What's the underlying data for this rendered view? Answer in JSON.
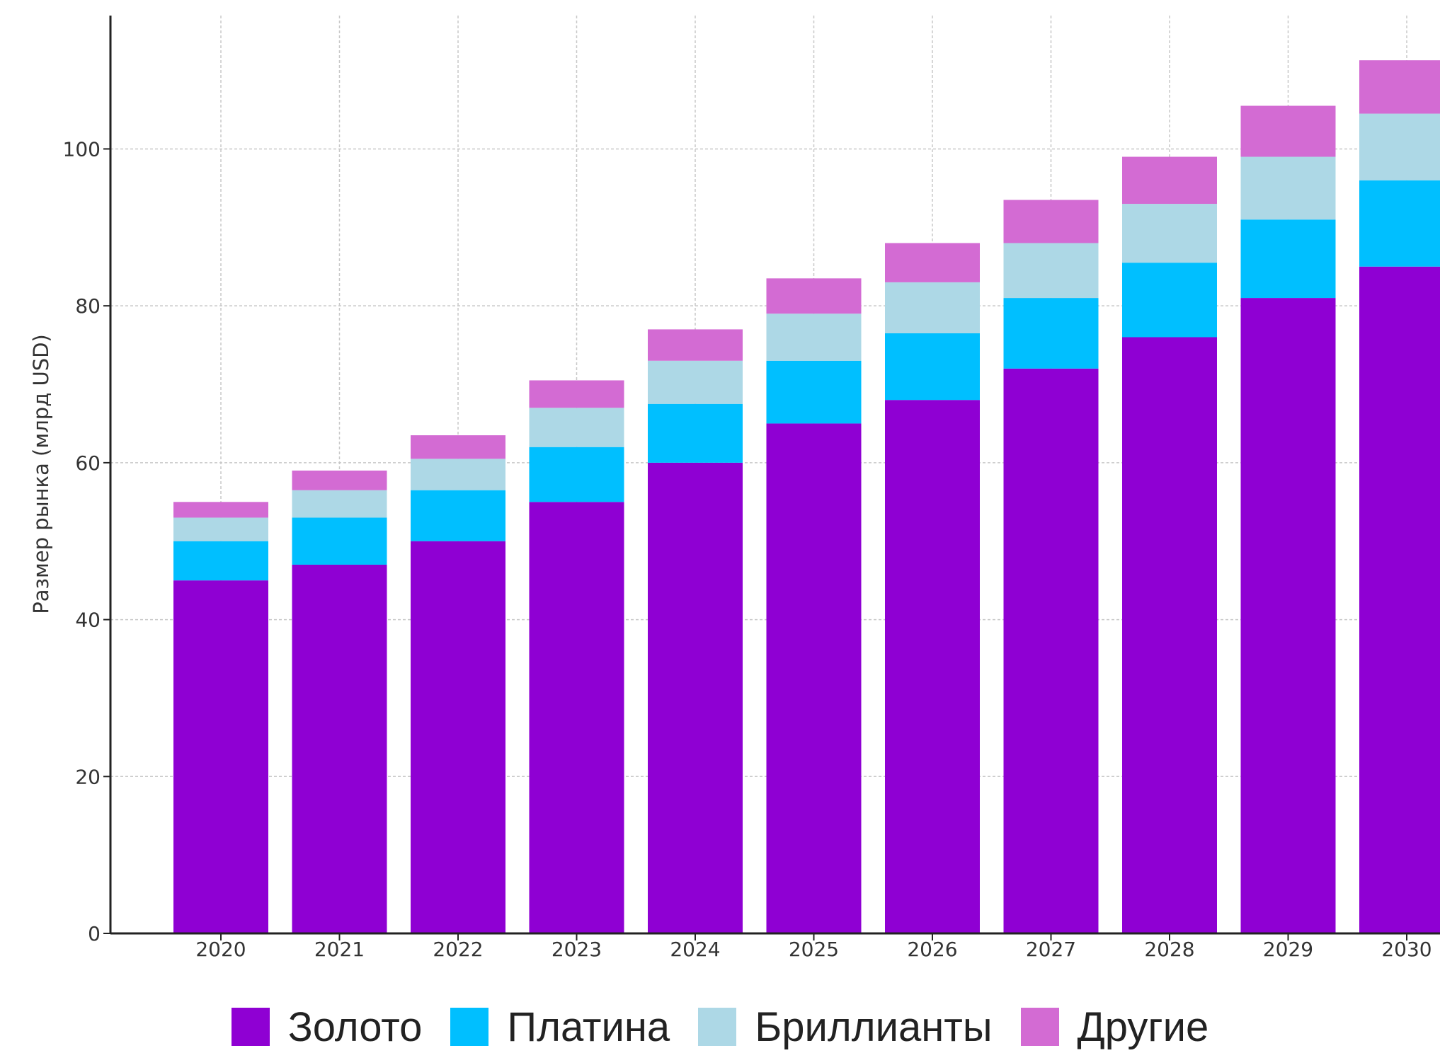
{
  "chart_data": {
    "type": "bar",
    "stacked": true,
    "categories": [
      "2020",
      "2021",
      "2022",
      "2023",
      "2024",
      "2025",
      "2026",
      "2027",
      "2028",
      "2029",
      "2030"
    ],
    "series": [
      {
        "name": "Золото",
        "color": "#8f00d3",
        "values": [
          45,
          47,
          50,
          55,
          60,
          65,
          68,
          72,
          76,
          81,
          85
        ]
      },
      {
        "name": "Платина",
        "color": "#00bfff",
        "values": [
          5,
          6,
          6.5,
          7,
          7.5,
          8,
          8.5,
          9,
          9.5,
          10,
          11
        ]
      },
      {
        "name": "Бриллианты",
        "color": "#add8e6",
        "values": [
          3,
          3.5,
          4,
          5,
          5.5,
          6,
          6.5,
          7,
          7.5,
          8,
          8.5
        ]
      },
      {
        "name": "Другие",
        "color": "#d36bd3",
        "values": [
          2,
          2.5,
          3,
          3.5,
          4,
          4.5,
          5,
          5.5,
          6,
          6.5,
          6.8
        ]
      }
    ],
    "ylabel": "Размер рынка (млрд USD)",
    "xlabel": "",
    "ylim": [
      0,
      117
    ],
    "yticks": [
      0,
      20,
      40,
      60,
      80,
      100
    ],
    "grid": true,
    "legend_position": "bottom"
  }
}
